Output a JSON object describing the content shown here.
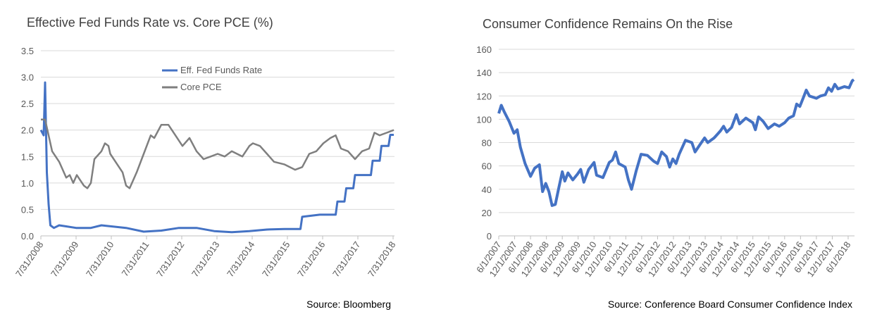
{
  "chart_data": [
    {
      "type": "line",
      "title": "Effective Fed Funds Rate vs. Core PCE (%)",
      "source": "Source: Bloomberg",
      "xlim": [
        2008.58,
        2018.62
      ],
      "xticks": [
        {
          "value": 2008.58,
          "label": "7/31/2008"
        },
        {
          "value": 2009.58,
          "label": "7/31/2009"
        },
        {
          "value": 2010.58,
          "label": "7/31/2010"
        },
        {
          "value": 2011.58,
          "label": "7/31/2011"
        },
        {
          "value": 2012.58,
          "label": "7/31/2012"
        },
        {
          "value": 2013.58,
          "label": "7/31/2013"
        },
        {
          "value": 2014.58,
          "label": "7/31/2014"
        },
        {
          "value": 2015.58,
          "label": "7/31/2015"
        },
        {
          "value": 2016.58,
          "label": "7/31/2016"
        },
        {
          "value": 2017.58,
          "label": "7/31/2017"
        },
        {
          "value": 2018.58,
          "label": "7/31/2018"
        }
      ],
      "ylim": [
        0,
        3.5
      ],
      "yticks": [
        {
          "value": 0,
          "label": "0.0"
        },
        {
          "value": 0.5,
          "label": "0.5"
        },
        {
          "value": 1,
          "label": "1.0"
        },
        {
          "value": 1.5,
          "label": "1.5"
        },
        {
          "value": 2,
          "label": "2.0"
        },
        {
          "value": 2.5,
          "label": "2.5"
        },
        {
          "value": 3,
          "label": "3.0"
        },
        {
          "value": 3.5,
          "label": "3.5"
        }
      ],
      "grid": true,
      "legend": "top-center",
      "series": [
        {
          "name": "Eff. Fed Funds Rate",
          "color": "#4472c4",
          "x": [
            2008.58,
            2008.66,
            2008.7,
            2008.75,
            2008.8,
            2008.85,
            2008.95,
            2009.1,
            2009.3,
            2009.58,
            2010,
            2010.3,
            2010.58,
            2011,
            2011.5,
            2012,
            2012.5,
            2013,
            2013.5,
            2014,
            2014.5,
            2015,
            2015.5,
            2015.95,
            2016.0,
            2016.5,
            2016.95,
            2017.0,
            2017.2,
            2017.25,
            2017.45,
            2017.5,
            2017.95,
            2018.0,
            2018.2,
            2018.25,
            2018.45,
            2018.5,
            2018.6
          ],
          "values": [
            2.0,
            1.9,
            2.9,
            1.2,
            0.6,
            0.2,
            0.15,
            0.2,
            0.18,
            0.15,
            0.15,
            0.2,
            0.18,
            0.15,
            0.08,
            0.1,
            0.15,
            0.15,
            0.09,
            0.07,
            0.09,
            0.12,
            0.13,
            0.13,
            0.36,
            0.4,
            0.4,
            0.65,
            0.65,
            0.9,
            0.9,
            1.15,
            1.15,
            1.42,
            1.42,
            1.7,
            1.7,
            1.91,
            1.91
          ]
        },
        {
          "name": "Core PCE",
          "color": "#7f7f7f",
          "x": [
            2008.58,
            2008.7,
            2008.9,
            2009.1,
            2009.3,
            2009.4,
            2009.5,
            2009.6,
            2009.8,
            2009.9,
            2010.0,
            2010.1,
            2010.3,
            2010.4,
            2010.5,
            2010.55,
            2010.7,
            2010.9,
            2011.0,
            2011.1,
            2011.3,
            2011.5,
            2011.7,
            2011.8,
            2012.0,
            2012.2,
            2012.4,
            2012.6,
            2012.8,
            2013.0,
            2013.2,
            2013.4,
            2013.6,
            2013.8,
            2014.0,
            2014.3,
            2014.5,
            2014.6,
            2014.8,
            2015.0,
            2015.2,
            2015.5,
            2015.8,
            2016.0,
            2016.2,
            2016.4,
            2016.6,
            2016.8,
            2016.95,
            2017.1,
            2017.3,
            2017.5,
            2017.7,
            2017.9,
            2018.05,
            2018.2,
            2018.4,
            2018.6
          ],
          "values": [
            2.2,
            2.2,
            1.6,
            1.4,
            1.1,
            1.15,
            1.0,
            1.15,
            0.95,
            0.9,
            1.0,
            1.45,
            1.6,
            1.75,
            1.7,
            1.55,
            1.4,
            1.2,
            0.95,
            0.9,
            1.2,
            1.55,
            1.9,
            1.85,
            2.1,
            2.1,
            1.9,
            1.7,
            1.85,
            1.6,
            1.45,
            1.5,
            1.55,
            1.5,
            1.6,
            1.5,
            1.7,
            1.75,
            1.7,
            1.55,
            1.4,
            1.35,
            1.25,
            1.3,
            1.55,
            1.6,
            1.75,
            1.85,
            1.9,
            1.65,
            1.6,
            1.45,
            1.6,
            1.65,
            1.95,
            1.9,
            1.95,
            2.0
          ]
        }
      ]
    },
    {
      "type": "line",
      "title": "Consumer Confidence Remains On the Rise",
      "source": "Source: Conference Board Consumer Confidence Index",
      "xlim": [
        2007.42,
        2018.62
      ],
      "xticks": [
        {
          "value": 2007.42,
          "label": "6/1/2007"
        },
        {
          "value": 2007.92,
          "label": "12/1/2007"
        },
        {
          "value": 2008.42,
          "label": "6/1/2008"
        },
        {
          "value": 2008.92,
          "label": "12/1/2008"
        },
        {
          "value": 2009.42,
          "label": "6/1/2009"
        },
        {
          "value": 2009.92,
          "label": "12/1/2009"
        },
        {
          "value": 2010.42,
          "label": "6/1/2010"
        },
        {
          "value": 2010.92,
          "label": "12/1/2010"
        },
        {
          "value": 2011.42,
          "label": "6/1/2011"
        },
        {
          "value": 2011.92,
          "label": "12/1/2011"
        },
        {
          "value": 2012.42,
          "label": "6/1/2012"
        },
        {
          "value": 2012.92,
          "label": "12/1/2012"
        },
        {
          "value": 2013.42,
          "label": "6/1/2013"
        },
        {
          "value": 2013.92,
          "label": "12/1/2013"
        },
        {
          "value": 2014.42,
          "label": "6/1/2014"
        },
        {
          "value": 2014.92,
          "label": "12/1/2014"
        },
        {
          "value": 2015.42,
          "label": "6/1/2015"
        },
        {
          "value": 2015.92,
          "label": "12/1/2015"
        },
        {
          "value": 2016.42,
          "label": "6/1/2016"
        },
        {
          "value": 2016.92,
          "label": "12/1/2016"
        },
        {
          "value": 2017.42,
          "label": "6/1/2017"
        },
        {
          "value": 2017.92,
          "label": "12/1/2017"
        },
        {
          "value": 2018.42,
          "label": "6/1/2018"
        }
      ],
      "ylim": [
        0,
        160
      ],
      "yticks": [
        0,
        20,
        40,
        60,
        80,
        100,
        120,
        140,
        160
      ],
      "grid": true,
      "series": [
        {
          "name": "Consumer Confidence",
          "color": "#4472c4",
          "x": [
            2007.42,
            2007.5,
            2007.6,
            2007.75,
            2007.9,
            2008.0,
            2008.1,
            2008.25,
            2008.42,
            2008.55,
            2008.7,
            2008.8,
            2008.9,
            2009.0,
            2009.1,
            2009.2,
            2009.3,
            2009.42,
            2009.5,
            2009.6,
            2009.75,
            2009.9,
            2010.0,
            2010.1,
            2010.25,
            2010.42,
            2010.5,
            2010.7,
            2010.9,
            2011.0,
            2011.1,
            2011.2,
            2011.4,
            2011.5,
            2011.6,
            2011.75,
            2011.9,
            2012.1,
            2012.3,
            2012.42,
            2012.55,
            2012.7,
            2012.8,
            2012.9,
            2013.0,
            2013.1,
            2013.3,
            2013.5,
            2013.6,
            2013.75,
            2013.9,
            2014.0,
            2014.2,
            2014.4,
            2014.5,
            2014.6,
            2014.75,
            2014.9,
            2015.0,
            2015.2,
            2015.42,
            2015.5,
            2015.6,
            2015.75,
            2015.9,
            2016.1,
            2016.25,
            2016.42,
            2016.55,
            2016.7,
            2016.8,
            2016.9,
            2017.0,
            2017.1,
            2017.2,
            2017.42,
            2017.55,
            2017.7,
            2017.8,
            2017.9,
            2018.0,
            2018.1,
            2018.3,
            2018.45,
            2018.55,
            2018.6
          ],
          "values": [
            105,
            112,
            106,
            98,
            88,
            91,
            76,
            62,
            51,
            58,
            61,
            38,
            45,
            38,
            26,
            27,
            40,
            55,
            47,
            54,
            48,
            53,
            57,
            46,
            57,
            63,
            52,
            50,
            63,
            65,
            72,
            62,
            59,
            48,
            40,
            56,
            70,
            69,
            64,
            62,
            72,
            68,
            59,
            66,
            62,
            70,
            82,
            80,
            72,
            78,
            84,
            80,
            84,
            90,
            94,
            89,
            93,
            104,
            96,
            101,
            97,
            91,
            102,
            98,
            92,
            96,
            94,
            97,
            101,
            103,
            113,
            111,
            118,
            125,
            120,
            118,
            120,
            121,
            127,
            124,
            130,
            126,
            128,
            127,
            133,
            134
          ]
        }
      ]
    }
  ]
}
